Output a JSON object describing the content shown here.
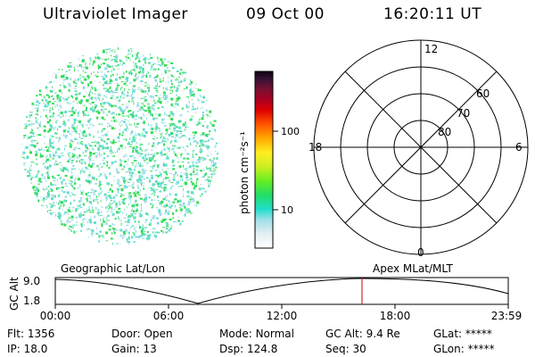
{
  "header": {
    "title": "Ultraviolet Imager",
    "date": "09 Oct 00",
    "time": "16:20:11 UT"
  },
  "colorbar": {
    "unit_label": "photon cm⁻²s⁻¹",
    "ticks": [
      {
        "label": "100",
        "value": 100
      },
      {
        "label": "10",
        "value": 10
      }
    ]
  },
  "polar_plot": {
    "mlt_labels": {
      "top": "12",
      "bottom": "0",
      "left": "18",
      "right": "6"
    },
    "lat_labels": [
      "60",
      "70",
      "80"
    ]
  },
  "altitude_plot": {
    "ylabel": "GC Alt",
    "yticks": [
      "9.0",
      "1.8"
    ],
    "left_label": "Geographic Lat/Lon",
    "right_label": "Apex MLat/MLT",
    "xticks": [
      "00:00",
      "06:00",
      "12:00",
      "18:00",
      "23:59"
    ],
    "marker_color": "#cc0000"
  },
  "footer": {
    "row1": [
      {
        "label": "Flt:",
        "value": "1356"
      },
      {
        "label": "Door:",
        "value": "Open"
      },
      {
        "label": "Mode:",
        "value": "Normal"
      },
      {
        "label": "GC Alt:",
        "value": "9.4 Re"
      },
      {
        "label": "GLat:",
        "value": "*****"
      }
    ],
    "row2": [
      {
        "label": "IP:",
        "value": "18.0"
      },
      {
        "label": "Gain:",
        "value": "13"
      },
      {
        "label": "Dsp:",
        "value": "124.8"
      },
      {
        "label": "Seq:",
        "value": "30"
      },
      {
        "label": "GLon:",
        "value": "*****"
      }
    ]
  },
  "colors": {
    "speckle_primary": "#33dd55",
    "speckle_secondary": "#66ddcc",
    "speckle_light": "#aaddee"
  }
}
